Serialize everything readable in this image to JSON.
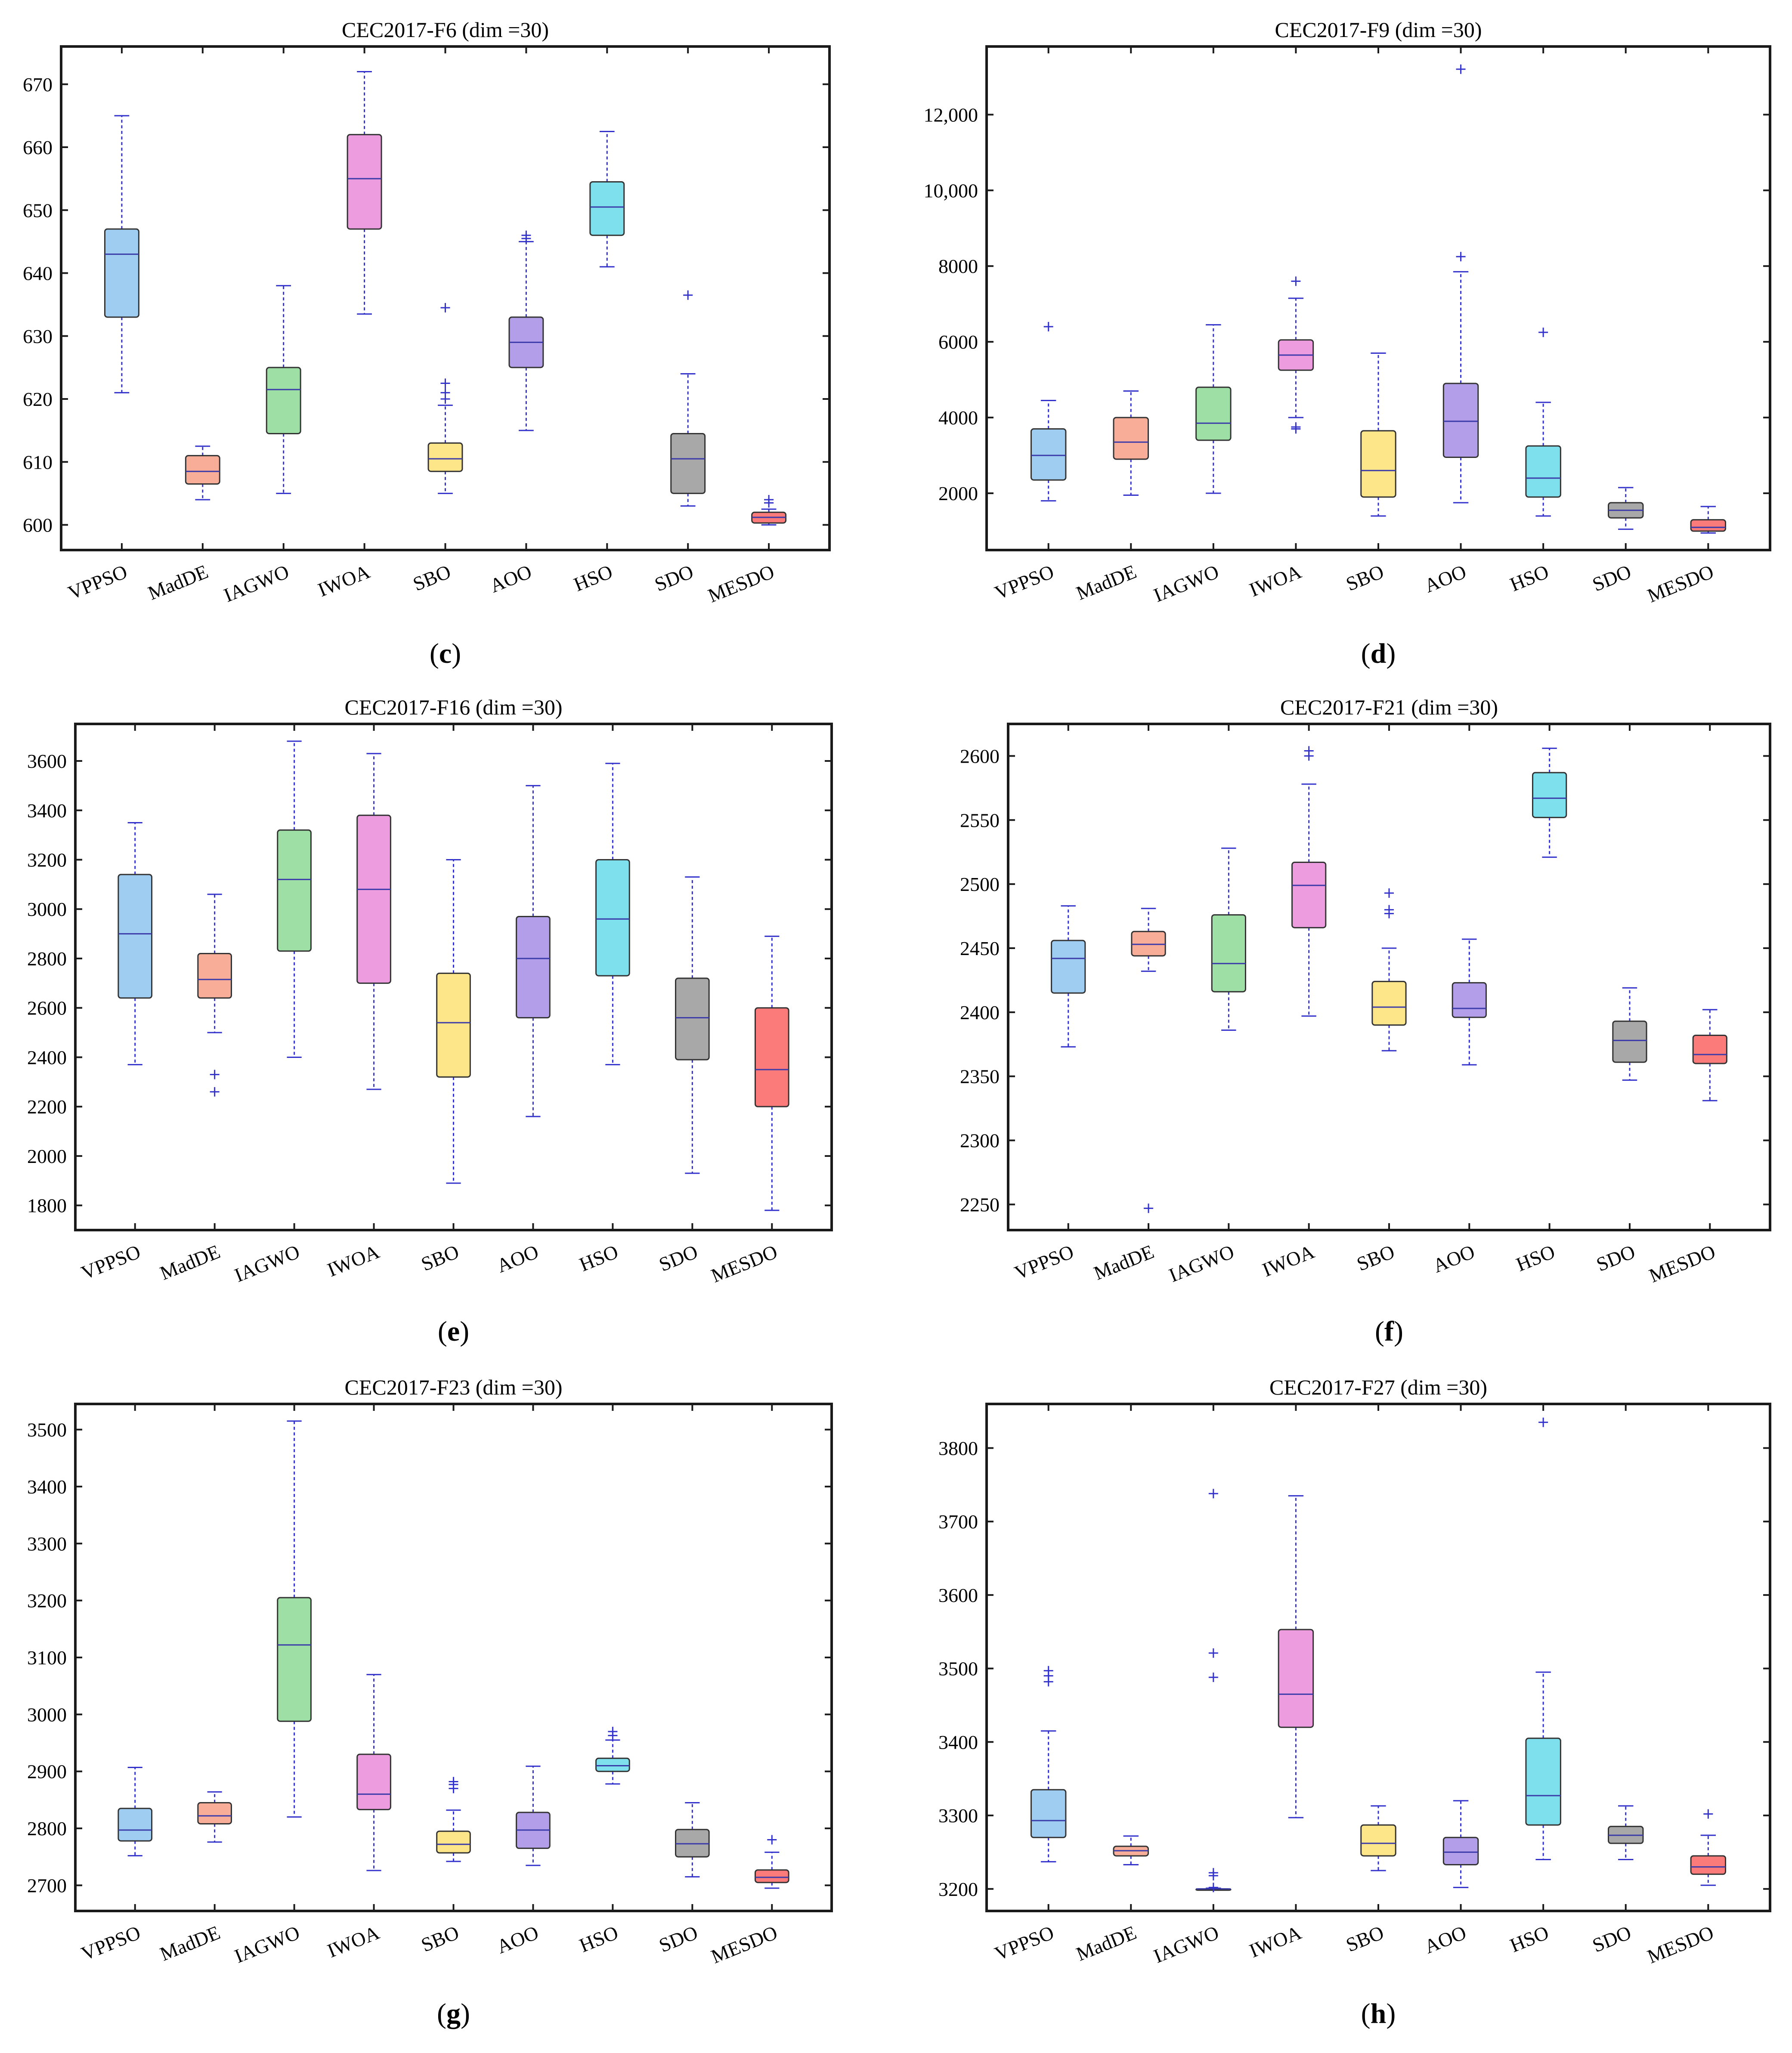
{
  "figure": {
    "categories": [
      "VPPSO",
      "MadDE",
      "IAGWO",
      "IWOA",
      "SBO",
      "AOO",
      "HSO",
      "SDO",
      "MESDO"
    ],
    "box_colors": [
      "#9fcdf2",
      "#f7ad97",
      "#9edfa5",
      "#ec9cdf",
      "#fde68a",
      "#b39eea",
      "#7ee0ec",
      "#a8a8a8",
      "#fb7a7a"
    ],
    "whisker_color": "#3333cc",
    "axis_color": "#1a1a1a"
  },
  "chart_data": [
    {
      "type": "box",
      "panel": "c",
      "letter_open": "(",
      "letter": "c",
      "letter_close": ")",
      "title": "CEC2017-F6 (dim =30)",
      "ylim": [
        596,
        676
      ],
      "yticks": [
        600,
        610,
        620,
        630,
        640,
        650,
        660,
        670
      ],
      "ytick_labels": [
        "600",
        "610",
        "620",
        "630",
        "640",
        "650",
        "660",
        "670"
      ],
      "boxes": [
        {
          "name": "VPPSO",
          "low": 621,
          "q1": 633,
          "median": 643,
          "q3": 647,
          "high": 665,
          "outliers": []
        },
        {
          "name": "MadDE",
          "low": 604,
          "q1": 606.5,
          "median": 608.5,
          "q3": 611,
          "high": 612.5,
          "outliers": []
        },
        {
          "name": "IAGWO",
          "low": 605,
          "q1": 614.5,
          "median": 621.5,
          "q3": 625,
          "high": 638,
          "outliers": []
        },
        {
          "name": "IWOA",
          "low": 633.5,
          "q1": 647,
          "median": 655,
          "q3": 662,
          "high": 672,
          "outliers": []
        },
        {
          "name": "SBO",
          "low": 605,
          "q1": 608.5,
          "median": 610.5,
          "q3": 613,
          "high": 619,
          "outliers": [
            620,
            621,
            622.5,
            634.5
          ]
        },
        {
          "name": "AOO",
          "low": 615,
          "q1": 625,
          "median": 629,
          "q3": 633,
          "high": 645,
          "outliers": [
            645.5,
            646
          ]
        },
        {
          "name": "HSO",
          "low": 641,
          "q1": 646,
          "median": 650.5,
          "q3": 654.5,
          "high": 662.5,
          "outliers": []
        },
        {
          "name": "SDO",
          "low": 603,
          "q1": 605,
          "median": 610.5,
          "q3": 614.5,
          "high": 624,
          "outliers": [
            636.5
          ]
        },
        {
          "name": "MESDO",
          "low": 600,
          "q1": 600.3,
          "median": 601.2,
          "q3": 602,
          "high": 602.5,
          "outliers": [
            603.5,
            604
          ]
        }
      ]
    },
    {
      "type": "box",
      "panel": "d",
      "letter_open": "(",
      "letter": "d",
      "letter_close": ")",
      "title": "CEC2017-F9 (dim =30)",
      "ylim": [
        500,
        13800
      ],
      "yticks": [
        2000,
        4000,
        6000,
        8000,
        10000,
        12000
      ],
      "ytick_labels": [
        "2000",
        "4000",
        "6000",
        "8000",
        "10,000",
        "12,000"
      ],
      "boxes": [
        {
          "name": "VPPSO",
          "low": 1800,
          "q1": 2350,
          "median": 3000,
          "q3": 3700,
          "high": 4450,
          "outliers": [
            6400
          ]
        },
        {
          "name": "MadDE",
          "low": 1950,
          "q1": 2900,
          "median": 3350,
          "q3": 4000,
          "high": 4700,
          "outliers": []
        },
        {
          "name": "IAGWO",
          "low": 2000,
          "q1": 3400,
          "median": 3850,
          "q3": 4800,
          "high": 6450,
          "outliers": []
        },
        {
          "name": "IWOA",
          "low": 4000,
          "q1": 5250,
          "median": 5650,
          "q3": 6050,
          "high": 7150,
          "outliers": [
            3700,
            3750,
            7600
          ]
        },
        {
          "name": "SBO",
          "low": 1400,
          "q1": 1900,
          "median": 2600,
          "q3": 3650,
          "high": 5700,
          "outliers": []
        },
        {
          "name": "AOO",
          "low": 1750,
          "q1": 2950,
          "median": 3900,
          "q3": 4900,
          "high": 7850,
          "outliers": [
            8250,
            13200
          ]
        },
        {
          "name": "HSO",
          "low": 1400,
          "q1": 1900,
          "median": 2400,
          "q3": 3250,
          "high": 4400,
          "outliers": [
            6250
          ]
        },
        {
          "name": "SDO",
          "low": 1050,
          "q1": 1350,
          "median": 1550,
          "q3": 1750,
          "high": 2150,
          "outliers": []
        },
        {
          "name": "MESDO",
          "low": 950,
          "q1": 1000,
          "median": 1100,
          "q3": 1300,
          "high": 1650,
          "outliers": []
        }
      ]
    },
    {
      "type": "box",
      "panel": "e",
      "letter_open": "(",
      "letter": "e",
      "letter_close": ")",
      "title": "CEC2017-F16 (dim =30)",
      "ylim": [
        1700,
        3750
      ],
      "yticks": [
        1800,
        2000,
        2200,
        2400,
        2600,
        2800,
        3000,
        3200,
        3400,
        3600
      ],
      "ytick_labels": [
        "1800",
        "2000",
        "2200",
        "2400",
        "2600",
        "2800",
        "3000",
        "3200",
        "3400",
        "3600"
      ],
      "boxes": [
        {
          "name": "VPPSO",
          "low": 2370,
          "q1": 2640,
          "median": 2900,
          "q3": 3140,
          "high": 3350,
          "outliers": []
        },
        {
          "name": "MadDE",
          "low": 2500,
          "q1": 2640,
          "median": 2715,
          "q3": 2820,
          "high": 3060,
          "outliers": [
            2260,
            2330
          ]
        },
        {
          "name": "IAGWO",
          "low": 2400,
          "q1": 2830,
          "median": 3120,
          "q3": 3320,
          "high": 3680,
          "outliers": []
        },
        {
          "name": "IWOA",
          "low": 2270,
          "q1": 2700,
          "median": 3080,
          "q3": 3380,
          "high": 3630,
          "outliers": []
        },
        {
          "name": "SBO",
          "low": 1890,
          "q1": 2320,
          "median": 2540,
          "q3": 2740,
          "high": 3200,
          "outliers": []
        },
        {
          "name": "AOO",
          "low": 2160,
          "q1": 2560,
          "median": 2800,
          "q3": 2970,
          "high": 3500,
          "outliers": []
        },
        {
          "name": "HSO",
          "low": 2370,
          "q1": 2730,
          "median": 2960,
          "q3": 3200,
          "high": 3590,
          "outliers": []
        },
        {
          "name": "SDO",
          "low": 1930,
          "q1": 2390,
          "median": 2560,
          "q3": 2720,
          "high": 3130,
          "outliers": []
        },
        {
          "name": "MESDO",
          "low": 1780,
          "q1": 2200,
          "median": 2350,
          "q3": 2600,
          "high": 2890,
          "outliers": []
        }
      ]
    },
    {
      "type": "box",
      "panel": "f",
      "letter_open": "(",
      "letter": "f",
      "letter_close": ")",
      "title": "CEC2017-F21 (dim =30)",
      "ylim": [
        2230,
        2625
      ],
      "yticks": [
        2250,
        2300,
        2350,
        2400,
        2450,
        2500,
        2550,
        2600
      ],
      "ytick_labels": [
        "2250",
        "2300",
        "2350",
        "2400",
        "2450",
        "2500",
        "2550",
        "2600"
      ],
      "boxes": [
        {
          "name": "VPPSO",
          "low": 2373,
          "q1": 2415,
          "median": 2442,
          "q3": 2456,
          "high": 2483,
          "outliers": []
        },
        {
          "name": "MadDE",
          "low": 2432,
          "q1": 2444,
          "median": 2453,
          "q3": 2463,
          "high": 2481,
          "outliers": [
            2247
          ]
        },
        {
          "name": "IAGWO",
          "low": 2386,
          "q1": 2416,
          "median": 2438,
          "q3": 2476,
          "high": 2528,
          "outliers": []
        },
        {
          "name": "IWOA",
          "low": 2397,
          "q1": 2466,
          "median": 2499,
          "q3": 2517,
          "high": 2578,
          "outliers": [
            2600,
            2604
          ]
        },
        {
          "name": "SBO",
          "low": 2370,
          "q1": 2390,
          "median": 2404,
          "q3": 2424,
          "high": 2450,
          "outliers": [
            2477,
            2480,
            2493
          ]
        },
        {
          "name": "AOO",
          "low": 2359,
          "q1": 2396,
          "median": 2403,
          "q3": 2423,
          "high": 2457,
          "outliers": []
        },
        {
          "name": "HSO",
          "low": 2521,
          "q1": 2552,
          "median": 2567,
          "q3": 2587,
          "high": 2606,
          "outliers": []
        },
        {
          "name": "SDO",
          "low": 2347,
          "q1": 2361,
          "median": 2378,
          "q3": 2393,
          "high": 2419,
          "outliers": []
        },
        {
          "name": "MESDO",
          "low": 2331,
          "q1": 2360,
          "median": 2367,
          "q3": 2382,
          "high": 2402,
          "outliers": []
        }
      ]
    },
    {
      "type": "box",
      "panel": "g",
      "letter_open": "(",
      "letter": "g",
      "letter_close": ")",
      "title": "CEC2017-F23 (dim =30)",
      "ylim": [
        2655,
        3545
      ],
      "yticks": [
        2700,
        2800,
        2900,
        3000,
        3100,
        3200,
        3300,
        3400,
        3500
      ],
      "ytick_labels": [
        "2700",
        "2800",
        "2900",
        "3000",
        "3100",
        "3200",
        "3300",
        "3400",
        "3500"
      ],
      "boxes": [
        {
          "name": "VPPSO",
          "low": 2752,
          "q1": 2778,
          "median": 2797,
          "q3": 2835,
          "high": 2907,
          "outliers": []
        },
        {
          "name": "MadDE",
          "low": 2776,
          "q1": 2808,
          "median": 2822,
          "q3": 2845,
          "high": 2864,
          "outliers": []
        },
        {
          "name": "IAGWO",
          "low": 2820,
          "q1": 2988,
          "median": 3122,
          "q3": 3205,
          "high": 3515,
          "outliers": []
        },
        {
          "name": "IWOA",
          "low": 2726,
          "q1": 2833,
          "median": 2860,
          "q3": 2930,
          "high": 3070,
          "outliers": []
        },
        {
          "name": "SBO",
          "low": 2742,
          "q1": 2757,
          "median": 2772,
          "q3": 2795,
          "high": 2832,
          "outliers": [
            2870,
            2877,
            2882
          ]
        },
        {
          "name": "AOO",
          "low": 2735,
          "q1": 2765,
          "median": 2797,
          "q3": 2828,
          "high": 2909,
          "outliers": []
        },
        {
          "name": "HSO",
          "low": 2878,
          "q1": 2900,
          "median": 2910,
          "q3": 2923,
          "high": 2955,
          "outliers": [
            2963,
            2970
          ]
        },
        {
          "name": "SDO",
          "low": 2715,
          "q1": 2750,
          "median": 2773,
          "q3": 2798,
          "high": 2845,
          "outliers": []
        },
        {
          "name": "MESDO",
          "low": 2695,
          "q1": 2705,
          "median": 2714,
          "q3": 2727,
          "high": 2758,
          "outliers": [
            2780
          ]
        }
      ]
    },
    {
      "type": "box",
      "panel": "h",
      "letter_open": "(",
      "letter": "h",
      "letter_close": ")",
      "title": "CEC2017-F27 (dim =30)",
      "ylim": [
        3170,
        3860
      ],
      "yticks": [
        3200,
        3300,
        3400,
        3500,
        3600,
        3700,
        3800
      ],
      "ytick_labels": [
        "3200",
        "3300",
        "3400",
        "3500",
        "3600",
        "3700",
        "3800"
      ],
      "boxes": [
        {
          "name": "VPPSO",
          "low": 3237,
          "q1": 3270,
          "median": 3293,
          "q3": 3335,
          "high": 3415,
          "outliers": [
            3482,
            3490,
            3497
          ]
        },
        {
          "name": "MadDE",
          "low": 3233,
          "q1": 3245,
          "median": 3252,
          "q3": 3258,
          "high": 3272,
          "outliers": []
        },
        {
          "name": "IAGWO",
          "low": 3200,
          "q1": 3200,
          "median": 3200,
          "q3": 3200,
          "high": 3201,
          "outliers": [
            3202,
            3218,
            3222,
            3488,
            3521,
            3738
          ]
        },
        {
          "name": "IWOA",
          "low": 3297,
          "q1": 3420,
          "median": 3465,
          "q3": 3553,
          "high": 3735,
          "outliers": []
        },
        {
          "name": "SBO",
          "low": 3225,
          "q1": 3245,
          "median": 3262,
          "q3": 3287,
          "high": 3313,
          "outliers": []
        },
        {
          "name": "AOO",
          "low": 3202,
          "q1": 3233,
          "median": 3250,
          "q3": 3270,
          "high": 3320,
          "outliers": []
        },
        {
          "name": "HSO",
          "low": 3240,
          "q1": 3287,
          "median": 3327,
          "q3": 3405,
          "high": 3495,
          "outliers": [
            3835
          ]
        },
        {
          "name": "SDO",
          "low": 3240,
          "q1": 3262,
          "median": 3273,
          "q3": 3285,
          "high": 3313,
          "outliers": []
        },
        {
          "name": "MESDO",
          "low": 3205,
          "q1": 3220,
          "median": 3230,
          "q3": 3245,
          "high": 3273,
          "outliers": [
            3302
          ]
        }
      ]
    }
  ]
}
